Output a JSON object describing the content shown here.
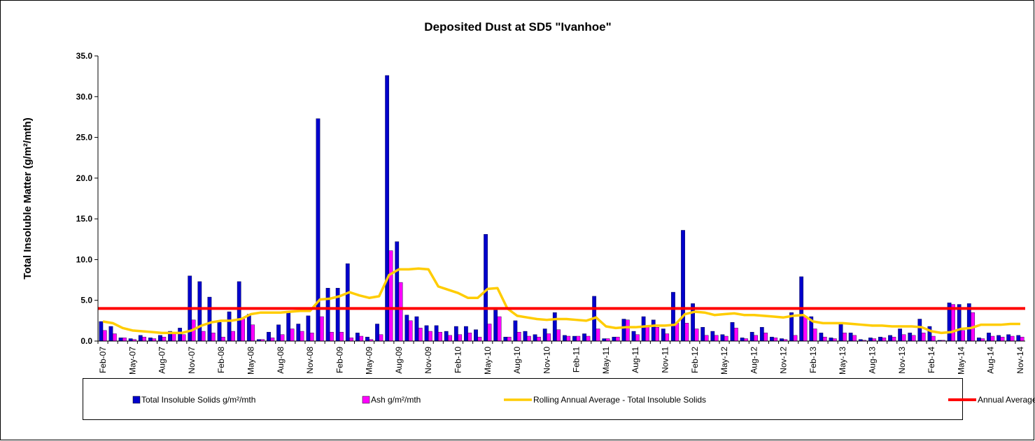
{
  "chart_data": {
    "type": "bar-line",
    "title": "Deposited Dust at SD5 \"Ivanhoe\"",
    "y_label": "Total Insoluble Matter  (g/m²/mth)",
    "categories": [
      "Feb-07",
      null,
      null,
      "May-07",
      null,
      null,
      "Aug-07",
      null,
      null,
      "Nov-07",
      null,
      null,
      "Feb-08",
      null,
      null,
      "May-08",
      null,
      null,
      "Aug-08",
      null,
      null,
      "Nov-08",
      null,
      null,
      "Feb-09",
      null,
      null,
      "May-09",
      null,
      null,
      "Aug-09",
      null,
      null,
      "Nov-09",
      null,
      null,
      "Feb-10",
      null,
      null,
      "May-10",
      null,
      null,
      "Aug-10",
      null,
      null,
      "Nov-10",
      null,
      null,
      "Feb-11",
      null,
      null,
      "May-11",
      null,
      null,
      "Aug-11",
      null,
      null,
      "Nov-11",
      null,
      null,
      "Feb-12",
      null,
      null,
      "May-12",
      null,
      null,
      "Aug-12",
      null,
      null,
      "Nov-12",
      null,
      null,
      "Feb-13",
      null,
      null,
      "May-13",
      null,
      null,
      "Aug-13",
      null,
      null,
      "Nov-13",
      null,
      null,
      "Feb-14",
      null,
      null,
      "May-14",
      null,
      null,
      "Aug-14",
      null,
      null,
      "Nov-14"
    ],
    "series": [
      {
        "name": "Total Insoluble Solids  g/m²/mth",
        "kind": "bar",
        "color": "#0000cc",
        "values": [
          2.4,
          1.8,
          0.4,
          0.3,
          0.7,
          0.4,
          0.7,
          1.2,
          1.6,
          8.0,
          7.3,
          5.4,
          2.3,
          3.6,
          7.3,
          3.3,
          0.2,
          1.1,
          2.0,
          3.6,
          2.1,
          3.1,
          27.3,
          6.5,
          6.5,
          9.5,
          1.0,
          0.5,
          2.1,
          32.6,
          12.2,
          3.2,
          3.0,
          1.9,
          1.9,
          1.2,
          1.8,
          1.8,
          1.4,
          13.1,
          3.8,
          0.5,
          2.5,
          1.2,
          0.8,
          1.5,
          3.5,
          0.7,
          0.6,
          0.9,
          5.5,
          0.3,
          0.5,
          2.7,
          1.2,
          3.0,
          2.6,
          1.5,
          6.0,
          13.6,
          4.6,
          1.7,
          1.2,
          0.8,
          2.3,
          0.4,
          1.1,
          1.7,
          0.5,
          0.3,
          3.5,
          7.9,
          3.0,
          1.0,
          0.4,
          2.3,
          1.0,
          0.2,
          0.4,
          0.5,
          0.7,
          1.5,
          1.0,
          2.7,
          1.8,
          0.1,
          4.7,
          4.5,
          4.6,
          0.4,
          1.0,
          0.7,
          0.8,
          0.7
        ]
      },
      {
        "name": "Ash  g/m²/mth",
        "kind": "bar",
        "color": "#ff00ff",
        "values": [
          1.3,
          0.9,
          0.4,
          0.2,
          0.5,
          0.3,
          0.5,
          0.9,
          0.8,
          2.6,
          1.2,
          1.0,
          0.5,
          1.2,
          2.7,
          2.0,
          0.2,
          0.4,
          0.8,
          1.5,
          1.2,
          1.0,
          3.0,
          1.1,
          1.1,
          0.4,
          0.6,
          0.2,
          0.8,
          11.1,
          7.2,
          2.5,
          1.6,
          1.2,
          1.1,
          0.7,
          0.8,
          1.0,
          0.5,
          2.1,
          3.0,
          0.5,
          1.1,
          0.6,
          0.5,
          0.9,
          1.4,
          0.6,
          0.6,
          0.6,
          1.5,
          0.3,
          0.5,
          2.6,
          0.8,
          1.8,
          1.7,
          0.9,
          2.2,
          2.2,
          1.5,
          0.7,
          0.7,
          0.6,
          1.6,
          0.3,
          0.7,
          1.0,
          0.4,
          0.2,
          0.7,
          3.0,
          1.5,
          0.5,
          0.3,
          1.0,
          0.7,
          0.1,
          0.3,
          0.4,
          0.5,
          0.8,
          0.7,
          1.0,
          0.6,
          0.1,
          4.5,
          1.3,
          3.5,
          0.3,
          0.6,
          0.5,
          0.6,
          0.5
        ]
      },
      {
        "name": "Rolling Annual Average - Total Insoluble Solids",
        "kind": "line",
        "color": "#ffcc00",
        "values": [
          2.4,
          2.2,
          1.6,
          1.3,
          1.2,
          1.1,
          1.0,
          1.0,
          1.0,
          1.3,
          1.9,
          2.3,
          2.5,
          2.5,
          2.7,
          3.3,
          3.5,
          3.5,
          3.5,
          3.6,
          3.7,
          3.7,
          5.1,
          5.2,
          5.5,
          6.0,
          5.6,
          5.3,
          5.5,
          8.1,
          8.8,
          8.8,
          8.9,
          8.8,
          6.7,
          6.3,
          5.9,
          5.3,
          5.3,
          6.4,
          6.5,
          4.0,
          3.1,
          2.9,
          2.7,
          2.6,
          2.7,
          2.7,
          2.6,
          2.5,
          2.9,
          1.8,
          1.6,
          1.7,
          1.7,
          1.8,
          1.9,
          1.9,
          2.0,
          3.3,
          3.6,
          3.5,
          3.2,
          3.3,
          3.4,
          3.2,
          3.2,
          3.1,
          3.0,
          2.9,
          3.1,
          3.2,
          2.4,
          2.2,
          2.2,
          2.2,
          2.1,
          2.0,
          1.9,
          1.9,
          1.8,
          1.8,
          1.8,
          1.7,
          1.2,
          1.0,
          1.1,
          1.5,
          1.6,
          2.0,
          2.0,
          2.0,
          2.1,
          2.1
        ]
      },
      {
        "name": "Annual Average Limit",
        "kind": "limit",
        "color": "#ff0000",
        "value": 4
      }
    ],
    "ylim": [
      0,
      35
    ],
    "yticks": [
      {
        "value": 0,
        "label": "0.0"
      },
      {
        "value": 5,
        "label": "5.0"
      },
      {
        "value": 10,
        "label": "10.0"
      },
      {
        "value": 15,
        "label": "15.0"
      },
      {
        "value": 20,
        "label": "20.0"
      },
      {
        "value": 25,
        "label": "25.0"
      },
      {
        "value": 30,
        "label": "30.0"
      },
      {
        "value": 35,
        "label": "35.0"
      }
    ]
  }
}
